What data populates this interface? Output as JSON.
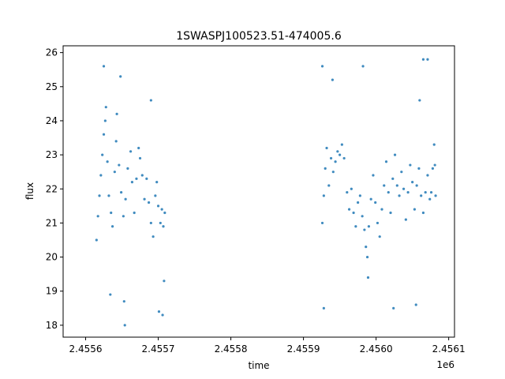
{
  "chart_data": {
    "type": "scatter",
    "title": "1SWASPJ100523.51-474005.6",
    "xlabel": "time",
    "ylabel": "flux",
    "x_offset_label": "1e6",
    "xlim": [
      2455569,
      2456108
    ],
    "ylim": [
      17.65,
      26.2
    ],
    "x_ticks": [
      {
        "value": 2455600,
        "label": "2.4556"
      },
      {
        "value": 2455700,
        "label": "2.4557"
      },
      {
        "value": 2455800,
        "label": "2.4558"
      },
      {
        "value": 2455900,
        "label": "2.4559"
      },
      {
        "value": 2456000,
        "label": "2.4560"
      },
      {
        "value": 2456100,
        "label": "2.4561"
      }
    ],
    "y_ticks": [
      {
        "value": 18,
        "label": "18"
      },
      {
        "value": 19,
        "label": "19"
      },
      {
        "value": 20,
        "label": "20"
      },
      {
        "value": 21,
        "label": "21"
      },
      {
        "value": 22,
        "label": "22"
      },
      {
        "value": 23,
        "label": "23"
      },
      {
        "value": 24,
        "label": "24"
      },
      {
        "value": 25,
        "label": "25"
      },
      {
        "value": 26,
        "label": "26"
      }
    ],
    "grid": false,
    "legend": "none",
    "marker_color": "#1f77b4",
    "series": [
      {
        "values": [
          {
            "x": 2455615,
            "y": 20.5
          },
          {
            "x": 2455617,
            "y": 21.2
          },
          {
            "x": 2455619,
            "y": 21.8
          },
          {
            "x": 2455621,
            "y": 22.4
          },
          {
            "x": 2455623,
            "y": 23.0
          },
          {
            "x": 2455625,
            "y": 23.6
          },
          {
            "x": 2455627,
            "y": 24.0
          },
          {
            "x": 2455628,
            "y": 24.4
          },
          {
            "x": 2455630,
            "y": 22.8
          },
          {
            "x": 2455632,
            "y": 21.8
          },
          {
            "x": 2455635,
            "y": 21.3
          },
          {
            "x": 2455637,
            "y": 20.9
          },
          {
            "x": 2455640,
            "y": 22.5
          },
          {
            "x": 2455642,
            "y": 23.4
          },
          {
            "x": 2455643,
            "y": 24.2
          },
          {
            "x": 2455646,
            "y": 22.7
          },
          {
            "x": 2455649,
            "y": 21.9
          },
          {
            "x": 2455652,
            "y": 21.2
          },
          {
            "x": 2455655,
            "y": 21.7
          },
          {
            "x": 2455658,
            "y": 22.6
          },
          {
            "x": 2455662,
            "y": 23.1
          },
          {
            "x": 2455664,
            "y": 22.2
          },
          {
            "x": 2455667,
            "y": 21.3
          },
          {
            "x": 2455670,
            "y": 22.3
          },
          {
            "x": 2455673,
            "y": 23.2
          },
          {
            "x": 2455675,
            "y": 22.9
          },
          {
            "x": 2455678,
            "y": 22.4
          },
          {
            "x": 2455681,
            "y": 21.7
          },
          {
            "x": 2455684,
            "y": 22.3
          },
          {
            "x": 2455687,
            "y": 21.6
          },
          {
            "x": 2455690,
            "y": 21.0
          },
          {
            "x": 2455693,
            "y": 20.6
          },
          {
            "x": 2455696,
            "y": 21.8
          },
          {
            "x": 2455698,
            "y": 22.2
          },
          {
            "x": 2455700,
            "y": 21.5
          },
          {
            "x": 2455703,
            "y": 21.0
          },
          {
            "x": 2455705,
            "y": 21.4
          },
          {
            "x": 2455707,
            "y": 20.9
          },
          {
            "x": 2455709,
            "y": 21.3
          },
          {
            "x": 2455625,
            "y": 25.6
          },
          {
            "x": 2455634,
            "y": 18.9
          },
          {
            "x": 2455653,
            "y": 18.7
          },
          {
            "x": 2455654,
            "y": 18.0
          },
          {
            "x": 2455648,
            "y": 25.3
          },
          {
            "x": 2455690,
            "y": 24.6
          },
          {
            "x": 2455701,
            "y": 18.4
          },
          {
            "x": 2455708,
            "y": 19.3
          },
          {
            "x": 2455706,
            "y": 18.3
          },
          {
            "x": 2455926,
            "y": 21.0
          },
          {
            "x": 2455928,
            "y": 21.8
          },
          {
            "x": 2455930,
            "y": 22.6
          },
          {
            "x": 2455932,
            "y": 23.2
          },
          {
            "x": 2455935,
            "y": 22.1
          },
          {
            "x": 2455938,
            "y": 22.9
          },
          {
            "x": 2455941,
            "y": 22.5
          },
          {
            "x": 2455944,
            "y": 22.8
          },
          {
            "x": 2455947,
            "y": 23.1
          },
          {
            "x": 2455950,
            "y": 23.0
          },
          {
            "x": 2455953,
            "y": 23.3
          },
          {
            "x": 2455956,
            "y": 22.9
          },
          {
            "x": 2455960,
            "y": 21.9
          },
          {
            "x": 2455963,
            "y": 21.4
          },
          {
            "x": 2455966,
            "y": 22.0
          },
          {
            "x": 2455969,
            "y": 21.3
          },
          {
            "x": 2455972,
            "y": 20.9
          },
          {
            "x": 2455975,
            "y": 21.6
          },
          {
            "x": 2455978,
            "y": 21.8
          },
          {
            "x": 2455981,
            "y": 21.2
          },
          {
            "x": 2455984,
            "y": 20.8
          },
          {
            "x": 2455986,
            "y": 20.3
          },
          {
            "x": 2455988,
            "y": 20.0
          },
          {
            "x": 2455990,
            "y": 20.9
          },
          {
            "x": 2455993,
            "y": 21.7
          },
          {
            "x": 2455996,
            "y": 22.4
          },
          {
            "x": 2455999,
            "y": 21.6
          },
          {
            "x": 2456002,
            "y": 21.0
          },
          {
            "x": 2456005,
            "y": 20.6
          },
          {
            "x": 2456008,
            "y": 21.4
          },
          {
            "x": 2456011,
            "y": 22.1
          },
          {
            "x": 2456014,
            "y": 22.8
          },
          {
            "x": 2456017,
            "y": 21.9
          },
          {
            "x": 2456020,
            "y": 21.3
          },
          {
            "x": 2456023,
            "y": 22.3
          },
          {
            "x": 2456026,
            "y": 23.0
          },
          {
            "x": 2456029,
            "y": 22.1
          },
          {
            "x": 2456032,
            "y": 21.8
          },
          {
            "x": 2456035,
            "y": 22.5
          },
          {
            "x": 2456038,
            "y": 22.0
          },
          {
            "x": 2456041,
            "y": 21.1
          },
          {
            "x": 2456044,
            "y": 21.9
          },
          {
            "x": 2456047,
            "y": 22.7
          },
          {
            "x": 2456050,
            "y": 22.2
          },
          {
            "x": 2456053,
            "y": 21.4
          },
          {
            "x": 2456056,
            "y": 22.1
          },
          {
            "x": 2456059,
            "y": 22.6
          },
          {
            "x": 2456062,
            "y": 21.8
          },
          {
            "x": 2456065,
            "y": 21.3
          },
          {
            "x": 2456068,
            "y": 21.9
          },
          {
            "x": 2456071,
            "y": 22.4
          },
          {
            "x": 2456074,
            "y": 21.7
          },
          {
            "x": 2456076,
            "y": 21.9
          },
          {
            "x": 2456078,
            "y": 22.6
          },
          {
            "x": 2456080,
            "y": 23.3
          },
          {
            "x": 2456081,
            "y": 22.7
          },
          {
            "x": 2456082,
            "y": 21.8
          },
          {
            "x": 2455926,
            "y": 25.6
          },
          {
            "x": 2455928,
            "y": 18.5
          },
          {
            "x": 2455940,
            "y": 25.2
          },
          {
            "x": 2455982,
            "y": 25.6
          },
          {
            "x": 2455989,
            "y": 19.4
          },
          {
            "x": 2456024,
            "y": 18.5
          },
          {
            "x": 2456055,
            "y": 18.6
          },
          {
            "x": 2456065,
            "y": 25.8
          },
          {
            "x": 2456071,
            "y": 25.8
          },
          {
            "x": 2456060,
            "y": 24.6
          }
        ]
      }
    ]
  }
}
